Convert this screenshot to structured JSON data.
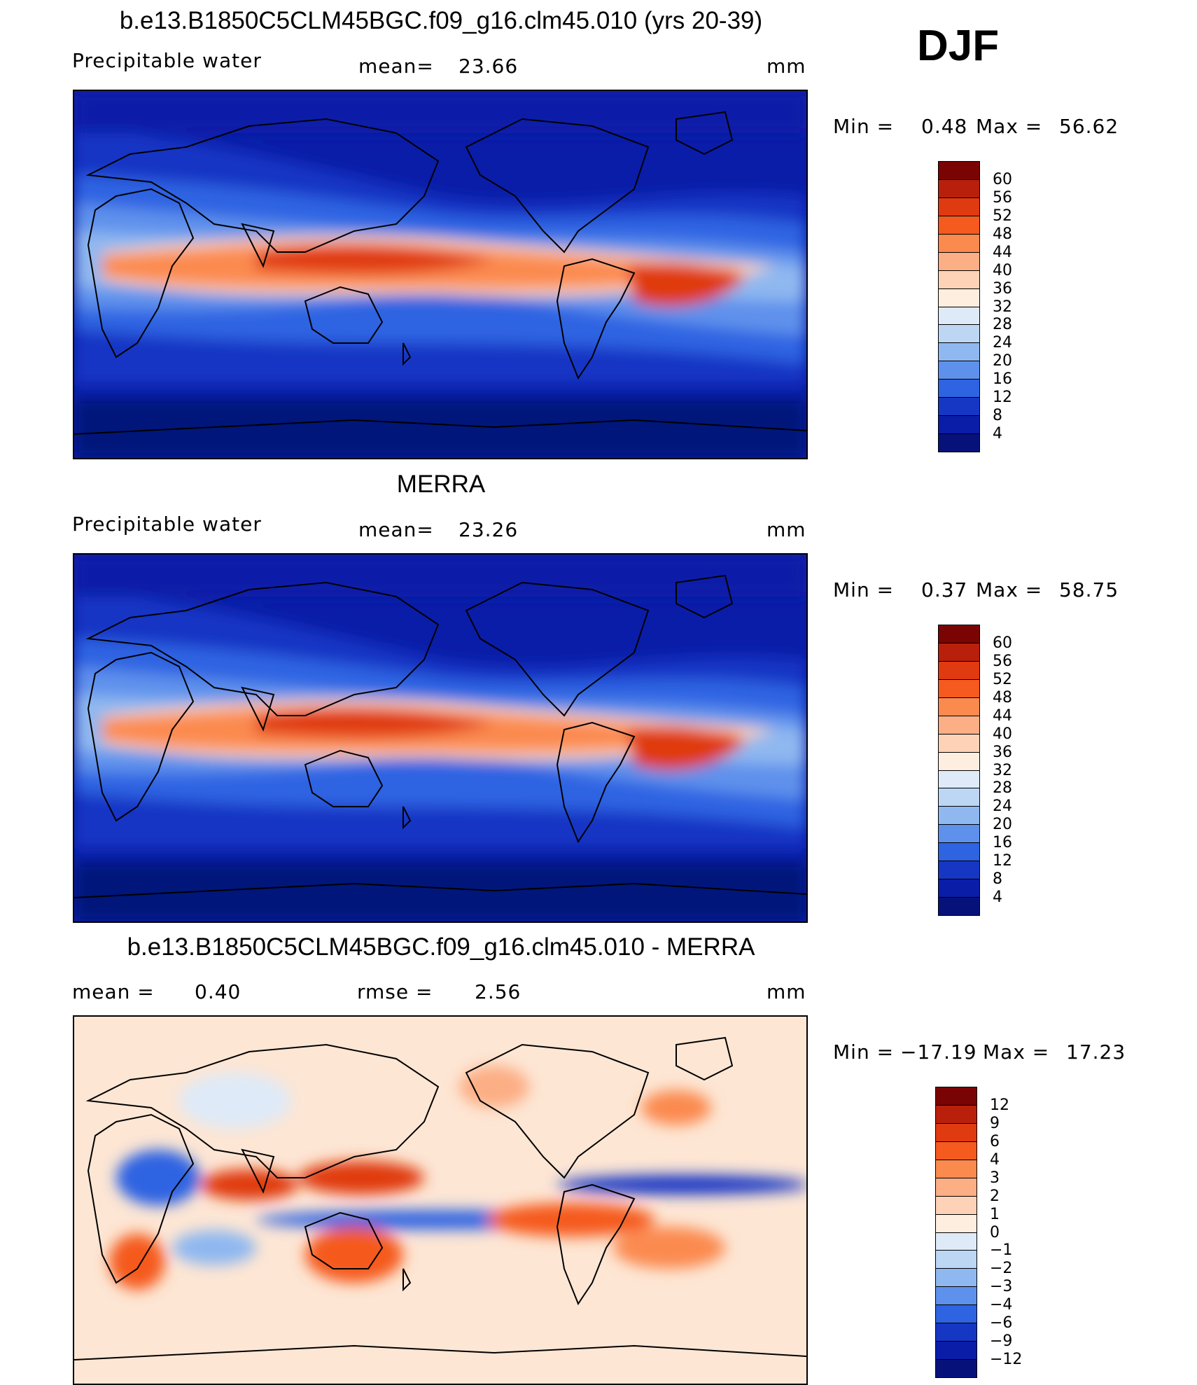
{
  "season": "DJF",
  "panels": [
    {
      "id": "model",
      "title": "b.e13.B1850C5CLM45BGC.f09_g16.clm45.010 (yrs 20-39)",
      "left_label": "Precipitable  water",
      "mid_label": "mean=",
      "mid_value": "23.66",
      "right_label": "mm",
      "min_label": "Min  =",
      "min_value": "0.48",
      "max_label": "Max  =",
      "max_value": "56.62",
      "colorbar": {
        "ticks": [
          "60",
          "56",
          "52",
          "48",
          "44",
          "40",
          "36",
          "32",
          "28",
          "24",
          "20",
          "16",
          "12",
          "8",
          "4"
        ],
        "colors": [
          "#7a0403",
          "#b8200c",
          "#e03a10",
          "#f55a1f",
          "#fb8a4f",
          "#fcae84",
          "#fdd2b6",
          "#fdeee0",
          "#deeaf8",
          "#bcd6f4",
          "#8fb8f0",
          "#5e91ec",
          "#2e63e2",
          "#1636c4",
          "#0a1da8",
          "#06127a"
        ]
      },
      "map_style": "full"
    },
    {
      "id": "obs",
      "title": "MERRA",
      "left_label": "Precipitable  water",
      "mid_label": "mean=",
      "mid_value": "23.26",
      "right_label": "mm",
      "min_label": "Min  =",
      "min_value": "0.37",
      "max_label": "Max  =",
      "max_value": "58.75",
      "colorbar": {
        "ticks": [
          "60",
          "56",
          "52",
          "48",
          "44",
          "40",
          "36",
          "32",
          "28",
          "24",
          "20",
          "16",
          "12",
          "8",
          "4"
        ],
        "colors": [
          "#7a0403",
          "#b8200c",
          "#e03a10",
          "#f55a1f",
          "#fb8a4f",
          "#fcae84",
          "#fdd2b6",
          "#fdeee0",
          "#deeaf8",
          "#bcd6f4",
          "#8fb8f0",
          "#5e91ec",
          "#2e63e2",
          "#1636c4",
          "#0a1da8",
          "#06127a"
        ]
      },
      "map_style": "full"
    },
    {
      "id": "diff",
      "title": "b.e13.B1850C5CLM45BGC.f09_g16.clm45.010 - MERRA",
      "left_label": "mean  =",
      "left_value": "0.40",
      "mid_label": "rmse  =",
      "mid_value": "2.56",
      "right_label": "mm",
      "min_label": "Min  =",
      "min_value": "−17.19",
      "max_label": "Max  =",
      "max_value": "17.23",
      "colorbar": {
        "ticks": [
          "12",
          "9",
          "6",
          "4",
          "3",
          "2",
          "1",
          "0",
          "−1",
          "−2",
          "−3",
          "−4",
          "−6",
          "−9",
          "−12"
        ],
        "colors": [
          "#7a0403",
          "#b8200c",
          "#e03a10",
          "#f55a1f",
          "#fb8a4f",
          "#fcae84",
          "#fdd2b6",
          "#fdeee0",
          "#deeaf8",
          "#bcd6f4",
          "#8fb8f0",
          "#5e91ec",
          "#2e63e2",
          "#1636c4",
          "#0a1da8",
          "#06127a"
        ]
      },
      "map_style": "diff"
    }
  ]
}
